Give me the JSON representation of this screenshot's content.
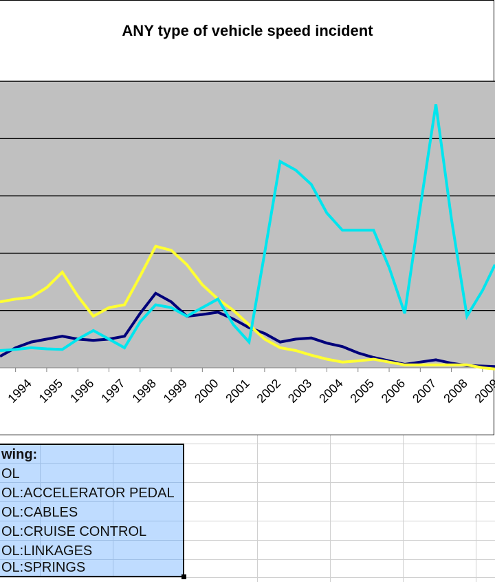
{
  "chart_data": {
    "type": "line",
    "title": "ANY type of vehicle speed incident",
    "categories": [
      "1994",
      "1995",
      "1996",
      "1997",
      "1998",
      "1999",
      "2000",
      "2001",
      "2002",
      "2003",
      "2004",
      "2005",
      "2006",
      "2007",
      "2008",
      "2009"
    ],
    "x_range": [
      1993.5,
      2009.4
    ],
    "ylim": [
      0,
      5
    ],
    "grid": true,
    "colors": {
      "plot_bg": "#c0c0c0",
      "grid": "#000000"
    },
    "series": [
      {
        "color": "#00007a",
        "x": [
          1993.5,
          1994,
          1994.5,
          1995,
          1995.5,
          1996,
          1996.5,
          1997,
          1997.5,
          1998,
          1998.5,
          1999,
          1999.5,
          2000,
          2000.5,
          2001,
          2001.5,
          2002,
          2002.5,
          2003,
          2003.5,
          2004,
          2004.5,
          2005,
          2005.5,
          2006,
          2006.5,
          2007,
          2007.5,
          2008,
          2008.5,
          2009,
          2009.4
        ],
        "y": [
          0.2,
          0.35,
          0.45,
          0.5,
          0.55,
          0.5,
          0.48,
          0.5,
          0.55,
          0.95,
          1.3,
          1.15,
          0.9,
          0.93,
          0.97,
          0.85,
          0.7,
          0.6,
          0.45,
          0.5,
          0.52,
          0.43,
          0.37,
          0.26,
          0.18,
          0.12,
          0.06,
          0.1,
          0.14,
          0.08,
          0.04,
          0.03,
          0.02
        ]
      },
      {
        "color": "#00e5ee",
        "x": [
          1993.5,
          1994,
          1994.5,
          1995,
          1995.5,
          1996,
          1996.5,
          1997,
          1997.5,
          1998,
          1998.5,
          1999,
          1999.5,
          2000,
          2000.5,
          2001,
          2001.5,
          2002,
          2002.5,
          2003,
          2003.5,
          2004,
          2004.5,
          2005,
          2005.5,
          2006,
          2006.5,
          2007,
          2007.5,
          2008,
          2008.5,
          2009,
          2009.4
        ],
        "y": [
          0.3,
          0.32,
          0.35,
          0.33,
          0.32,
          0.5,
          0.65,
          0.5,
          0.35,
          0.8,
          1.1,
          1.05,
          0.9,
          1.05,
          1.2,
          0.75,
          0.45,
          2.0,
          3.6,
          3.45,
          3.2,
          2.7,
          2.4,
          2.4,
          2.4,
          1.75,
          0.95,
          2.8,
          4.6,
          2.6,
          0.9,
          1.35,
          1.8
        ]
      },
      {
        "color": "#ffff33",
        "x": [
          1993.5,
          1994,
          1994.5,
          1995,
          1995.5,
          1996,
          1996.5,
          1997,
          1997.5,
          1998,
          1998.5,
          1999,
          1999.5,
          2000,
          2000.5,
          2001,
          2001.5,
          2002,
          2002.5,
          2003,
          2003.5,
          2004,
          2004.5,
          2005,
          2005.5,
          2006,
          2006.5,
          2008.5,
          2009,
          2009.4
        ],
        "y": [
          1.15,
          1.2,
          1.23,
          1.4,
          1.67,
          1.25,
          0.9,
          1.05,
          1.1,
          1.6,
          2.12,
          2.05,
          1.8,
          1.45,
          1.2,
          1.0,
          0.75,
          0.5,
          0.35,
          0.3,
          0.22,
          0.15,
          0.1,
          0.12,
          0.15,
          0.1,
          0.05,
          0.05,
          0.0,
          -0.02
        ]
      }
    ]
  },
  "sheet": {
    "legend_header": "wing:",
    "legend_rows": [
      "OL",
      "OL:ACCELERATOR PEDAL",
      "OL:CABLES",
      "OL:CRUISE CONTROL",
      "OL:LINKAGES",
      "OL:SPRINGS"
    ]
  }
}
